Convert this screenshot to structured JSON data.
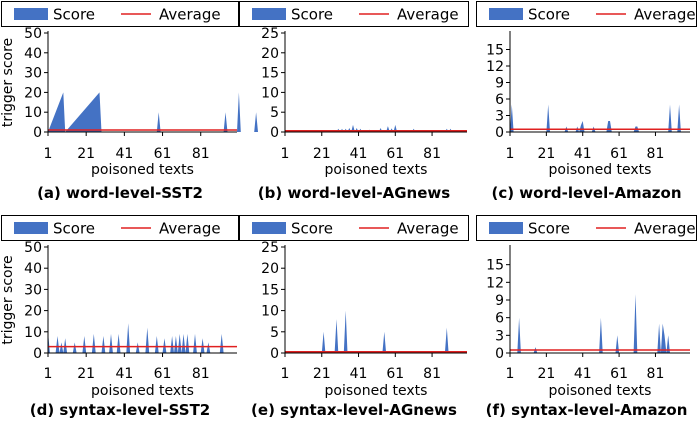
{
  "legend": {
    "score": "Score",
    "average": "Average"
  },
  "colors": {
    "score": "#4472C4",
    "average": "#E02020"
  },
  "common": {
    "ylabel": "trigger score",
    "xlabel": "poisoned texts",
    "xticks": [
      1,
      21,
      41,
      61,
      81
    ],
    "xlim": [
      1,
      100
    ]
  },
  "chart_data": [
    {
      "type": "area",
      "caption": "(a) word-level-SST2",
      "ylim": [
        0,
        50
      ],
      "yticks": [
        0,
        10,
        20,
        30,
        40,
        50
      ],
      "average": 1,
      "spikes": [
        [
          1,
          0
        ],
        [
          9,
          20
        ],
        [
          10,
          0
        ],
        [
          28,
          20
        ],
        [
          29,
          0
        ],
        [
          58,
          0
        ],
        [
          59,
          10
        ],
        [
          60,
          0
        ],
        [
          93,
          0
        ],
        [
          94,
          10
        ],
        [
          95,
          0
        ],
        [
          100,
          0
        ],
        [
          101,
          20
        ],
        [
          102,
          0
        ],
        [
          109,
          0
        ],
        [
          110,
          10
        ],
        [
          111,
          0
        ]
      ]
    },
    {
      "type": "area",
      "caption": "(b) word-level-AGnews",
      "ylim": [
        0,
        25
      ],
      "yticks": [
        0,
        5,
        10,
        15,
        20,
        25
      ],
      "average": 0.3,
      "spikes": [
        [
          29,
          0
        ],
        [
          30,
          0.8
        ],
        [
          31,
          0
        ],
        [
          32,
          0.8
        ],
        [
          33,
          0
        ],
        [
          34,
          0.8
        ],
        [
          35,
          0
        ],
        [
          36,
          1
        ],
        [
          37,
          0
        ],
        [
          38,
          1.8
        ],
        [
          39,
          0
        ],
        [
          40,
          1
        ],
        [
          41,
          0
        ],
        [
          42,
          0.8
        ],
        [
          43,
          0
        ],
        [
          46,
          0
        ],
        [
          47,
          0.6
        ],
        [
          48,
          0
        ],
        [
          52,
          0
        ],
        [
          53,
          1
        ],
        [
          54,
          0
        ],
        [
          56,
          0
        ],
        [
          57,
          1.5
        ],
        [
          58,
          0
        ],
        [
          59,
          0.9
        ],
        [
          60,
          0
        ],
        [
          61,
          1.8
        ],
        [
          62,
          0
        ],
        [
          70,
          0
        ],
        [
          71,
          0.8
        ],
        [
          72,
          0
        ],
        [
          88,
          0
        ],
        [
          89,
          0.8
        ],
        [
          90,
          0
        ],
        [
          91,
          0.8
        ],
        [
          92,
          0
        ]
      ]
    },
    {
      "type": "area",
      "caption": "(c) word-level-Amazon",
      "ylim": [
        0,
        18
      ],
      "yticks": [
        0,
        3,
        6,
        9,
        12,
        15
      ],
      "average": 0.5,
      "spikes": [
        [
          1,
          0
        ],
        [
          2,
          5
        ],
        [
          3,
          0
        ],
        [
          21,
          0
        ],
        [
          22,
          5
        ],
        [
          23,
          0
        ],
        [
          31,
          0
        ],
        [
          32,
          1
        ],
        [
          33,
          0
        ],
        [
          37,
          0
        ],
        [
          38,
          1
        ],
        [
          39,
          0
        ],
        [
          40,
          1.2
        ],
        [
          41,
          2
        ],
        [
          42,
          0
        ],
        [
          46,
          0
        ],
        [
          47,
          1
        ],
        [
          48,
          0
        ],
        [
          54,
          0
        ],
        [
          55,
          2
        ],
        [
          56,
          2
        ],
        [
          57,
          0
        ],
        [
          69,
          0
        ],
        [
          70,
          1
        ],
        [
          71,
          1
        ],
        [
          72,
          0
        ],
        [
          88,
          0
        ],
        [
          89,
          5
        ],
        [
          90,
          0
        ],
        [
          93,
          0
        ],
        [
          94,
          5
        ],
        [
          95,
          0
        ]
      ]
    },
    {
      "type": "area",
      "caption": "(d) syntax-level-SST2",
      "ylim": [
        0,
        50
      ],
      "yticks": [
        0,
        10,
        20,
        30,
        40,
        50
      ],
      "average": 3,
      "spikes": [
        [
          1,
          10
        ],
        [
          2,
          0
        ],
        [
          5,
          0
        ],
        [
          6,
          8
        ],
        [
          7,
          0
        ],
        [
          8,
          5
        ],
        [
          9,
          0
        ],
        [
          10,
          7
        ],
        [
          11,
          0
        ],
        [
          14,
          0
        ],
        [
          15,
          5
        ],
        [
          16,
          0
        ],
        [
          19,
          0
        ],
        [
          20,
          8
        ],
        [
          21,
          0
        ],
        [
          24,
          0
        ],
        [
          25,
          9
        ],
        [
          26,
          0
        ],
        [
          29,
          0
        ],
        [
          30,
          8
        ],
        [
          31,
          0
        ],
        [
          33,
          0
        ],
        [
          34,
          9
        ],
        [
          35,
          0
        ],
        [
          37,
          0
        ],
        [
          38,
          9
        ],
        [
          39,
          0
        ],
        [
          42,
          0
        ],
        [
          43,
          14
        ],
        [
          44,
          0
        ],
        [
          47,
          0
        ],
        [
          48,
          5
        ],
        [
          49,
          0
        ],
        [
          52,
          0
        ],
        [
          53,
          12
        ],
        [
          54,
          0
        ],
        [
          57,
          0
        ],
        [
          58,
          8
        ],
        [
          59,
          0
        ],
        [
          61,
          0
        ],
        [
          62,
          7
        ],
        [
          63,
          0
        ],
        [
          65,
          0
        ],
        [
          66,
          8
        ],
        [
          67,
          0
        ],
        [
          68,
          8
        ],
        [
          69,
          0
        ],
        [
          70,
          9
        ],
        [
          71,
          0
        ],
        [
          72,
          9
        ],
        [
          73,
          0
        ],
        [
          74,
          9
        ],
        [
          75,
          0
        ],
        [
          77,
          0
        ],
        [
          78,
          9
        ],
        [
          79,
          0
        ],
        [
          81,
          0
        ],
        [
          82,
          7
        ],
        [
          83,
          0
        ],
        [
          84,
          0
        ],
        [
          85,
          5
        ],
        [
          86,
          0
        ],
        [
          91,
          0
        ],
        [
          92,
          9
        ],
        [
          93,
          0
        ]
      ]
    },
    {
      "type": "area",
      "caption": "(e) syntax-level-AGnews",
      "ylim": [
        0,
        25
      ],
      "yticks": [
        0,
        5,
        10,
        15,
        20,
        25
      ],
      "average": 0.3,
      "spikes": [
        [
          21,
          0
        ],
        [
          22,
          5
        ],
        [
          23,
          0
        ],
        [
          28,
          0
        ],
        [
          29,
          8
        ],
        [
          30,
          0
        ],
        [
          33,
          0
        ],
        [
          34,
          10
        ],
        [
          35,
          0
        ],
        [
          54,
          0
        ],
        [
          55,
          5
        ],
        [
          56,
          0
        ],
        [
          88,
          0
        ],
        [
          89,
          6
        ],
        [
          90,
          0
        ]
      ]
    },
    {
      "type": "area",
      "caption": "(f) syntax-level-Amazon",
      "ylim": [
        0,
        18
      ],
      "yticks": [
        0,
        3,
        6,
        9,
        12,
        15
      ],
      "average": 0.5,
      "spikes": [
        [
          5,
          0
        ],
        [
          6,
          6
        ],
        [
          7,
          0
        ],
        [
          14,
          0
        ],
        [
          15,
          1
        ],
        [
          16,
          0
        ],
        [
          50,
          0
        ],
        [
          51,
          6
        ],
        [
          52,
          0
        ],
        [
          59,
          0
        ],
        [
          60,
          3
        ],
        [
          61,
          0
        ],
        [
          69,
          0
        ],
        [
          70,
          10
        ],
        [
          71,
          0
        ],
        [
          82,
          0
        ],
        [
          83,
          5
        ],
        [
          84,
          0
        ],
        [
          85,
          5
        ],
        [
          86,
          3
        ],
        [
          87,
          0
        ],
        [
          88,
          3
        ],
        [
          89,
          0
        ]
      ]
    }
  ]
}
